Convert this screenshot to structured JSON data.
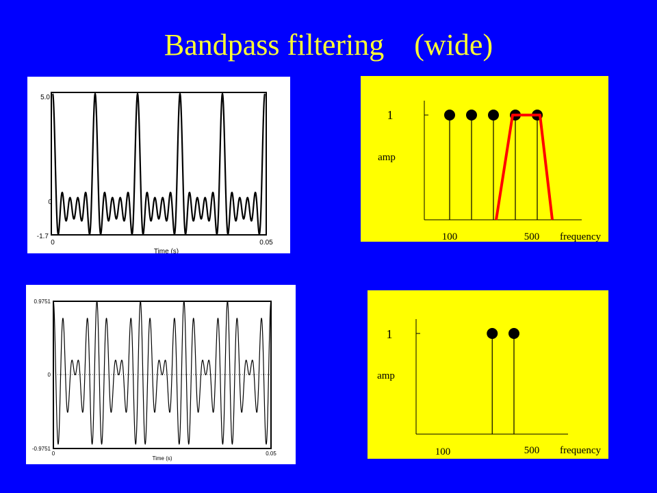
{
  "slide": {
    "title": "Bandpass filtering    (wide)",
    "colors": {
      "background": "#0000ff",
      "title": "#ffff33",
      "spectrum_bg": "#ffff00",
      "filter": "#ff0000"
    }
  },
  "chart_data": [
    {
      "type": "line",
      "name": "input-waveform",
      "xlabel": "Time (s)",
      "x_ticks": [
        "0",
        "0.05"
      ],
      "y_ticks": [
        "5.0",
        "0",
        "-1.7"
      ],
      "xlim": [
        0,
        0.05
      ],
      "ylim": [
        -1.7,
        5.0
      ],
      "components_hz": [
        100,
        200,
        300,
        400,
        500
      ]
    },
    {
      "type": "line",
      "name": "filtered-waveform",
      "xlabel": "Time (s)",
      "x_ticks": [
        "0",
        "0.05"
      ],
      "y_ticks": [
        "0.9751",
        "0",
        "-0.9751"
      ],
      "xlim": [
        0,
        0.05
      ],
      "ylim": [
        -0.9751,
        0.9751
      ],
      "components_hz": [
        400,
        500
      ]
    },
    {
      "type": "scatter",
      "name": "input-spectrum",
      "ylabel": "amp",
      "xlabel": "frequency",
      "y_tick": "1",
      "x_ticks": [
        "100",
        "500"
      ],
      "frequencies": [
        100,
        200,
        300,
        400,
        500
      ],
      "amplitudes": [
        1,
        1,
        1,
        1,
        1
      ],
      "filter_passband": [
        400,
        500
      ]
    },
    {
      "type": "scatter",
      "name": "output-spectrum",
      "ylabel": "amp",
      "xlabel": "frequency",
      "y_tick": "1",
      "x_ticks": [
        "100",
        "500"
      ],
      "frequencies": [
        400,
        500
      ],
      "amplitudes": [
        1,
        1
      ]
    }
  ]
}
